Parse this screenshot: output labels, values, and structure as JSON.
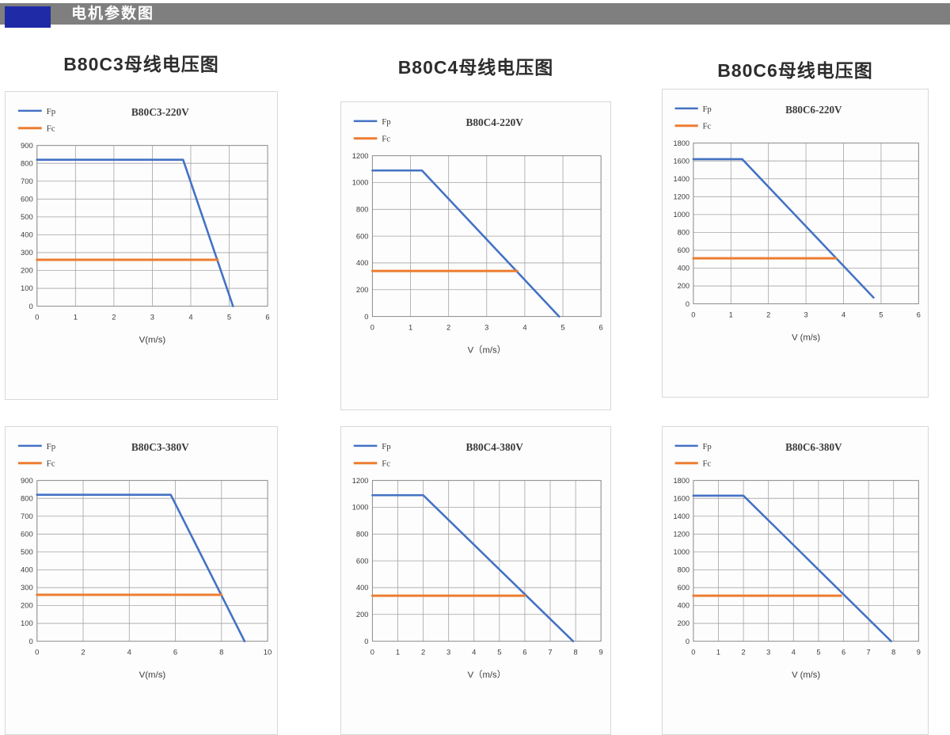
{
  "header": {
    "title": "电机参数图"
  },
  "column_titles": [
    "B80C3母线电压图",
    "B80C4母线电压图",
    "B80C6母线电压图"
  ],
  "colors": {
    "fp_line": "#4472C4",
    "fc_line": "#ED7D31",
    "grid": "#a3a3a3",
    "header_bar": "#7f7f7f",
    "header_accent": "#1f2ba6",
    "header_text": "#ffffff",
    "tick_text": "#3b3b3b"
  },
  "chart_data": [
    {
      "type": "line",
      "title": "B80C3-220V",
      "xlabel": "V(m/s)",
      "xlim": [
        0,
        6
      ],
      "xstep": 1,
      "ylim": [
        0,
        900
      ],
      "ystep": 100,
      "grid": true,
      "legend_position": "top-left",
      "legend": [
        "Fp",
        "Fc"
      ],
      "series": [
        {
          "name": "Fp",
          "color": "#4472C4",
          "points": [
            [
              0,
              820
            ],
            [
              3.8,
              820
            ],
            [
              5.1,
              0
            ]
          ]
        },
        {
          "name": "Fc",
          "color": "#ED7D31",
          "points": [
            [
              0,
              260
            ],
            [
              4.7,
              260
            ]
          ]
        }
      ]
    },
    {
      "type": "line",
      "title": "B80C4-220V",
      "xlabel": "V（m/s）",
      "xlim": [
        0,
        6
      ],
      "xstep": 1,
      "ylim": [
        0,
        1200
      ],
      "ystep": 200,
      "grid": true,
      "legend_position": "top-left",
      "legend": [
        "Fp",
        "Fc"
      ],
      "series": [
        {
          "name": "Fp",
          "color": "#4472C4",
          "points": [
            [
              0,
              1090
            ],
            [
              1.3,
              1090
            ],
            [
              4.9,
              0
            ]
          ]
        },
        {
          "name": "Fc",
          "color": "#ED7D31",
          "points": [
            [
              0,
              340
            ],
            [
              3.8,
              340
            ]
          ]
        }
      ]
    },
    {
      "type": "line",
      "title": "B80C6-220V",
      "xlabel": "V (m/s)",
      "xlim": [
        0,
        6
      ],
      "xstep": 1,
      "ylim": [
        0,
        1800
      ],
      "ystep": 200,
      "grid": true,
      "legend_position": "top-left",
      "legend": [
        "Fp",
        "Fc"
      ],
      "series": [
        {
          "name": "Fp",
          "color": "#4472C4",
          "points": [
            [
              0,
              1620
            ],
            [
              1.3,
              1620
            ],
            [
              4.8,
              70
            ]
          ]
        },
        {
          "name": "Fc",
          "color": "#ED7D31",
          "points": [
            [
              0,
              510
            ],
            [
              3.8,
              510
            ]
          ]
        }
      ]
    },
    {
      "type": "line",
      "title": "B80C3-380V",
      "xlabel": "V(m/s)",
      "xlim": [
        0,
        10
      ],
      "xstep": 2,
      "ylim": [
        0,
        900
      ],
      "ystep": 100,
      "grid": true,
      "legend_position": "top-left",
      "legend": [
        "Fp",
        "Fc"
      ],
      "series": [
        {
          "name": "Fp",
          "color": "#4472C4",
          "points": [
            [
              0,
              820
            ],
            [
              5.8,
              820
            ],
            [
              9,
              0
            ]
          ]
        },
        {
          "name": "Fc",
          "color": "#ED7D31",
          "points": [
            [
              0,
              260
            ],
            [
              8,
              260
            ]
          ]
        }
      ]
    },
    {
      "type": "line",
      "title": "B80C4-380V",
      "xlabel": "V（m/s）",
      "xlim": [
        0,
        9
      ],
      "xstep": 1,
      "ylim": [
        0,
        1200
      ],
      "ystep": 200,
      "grid": true,
      "legend_position": "top-left",
      "legend": [
        "Fp",
        "Fc"
      ],
      "series": [
        {
          "name": "Fp",
          "color": "#4472C4",
          "points": [
            [
              0,
              1090
            ],
            [
              2,
              1090
            ],
            [
              7.9,
              0
            ]
          ]
        },
        {
          "name": "Fc",
          "color": "#ED7D31",
          "points": [
            [
              0,
              340
            ],
            [
              6,
              340
            ]
          ]
        }
      ]
    },
    {
      "type": "line",
      "title": "B80C6-380V",
      "xlabel": "V (m/s)",
      "xlim": [
        0,
        9
      ],
      "xstep": 1,
      "ylim": [
        0,
        1800
      ],
      "ystep": 200,
      "grid": true,
      "legend_position": "top-left",
      "legend": [
        "Fp",
        "Fc"
      ],
      "series": [
        {
          "name": "Fp",
          "color": "#4472C4",
          "points": [
            [
              0,
              1630
            ],
            [
              2,
              1630
            ],
            [
              7.9,
              0
            ]
          ]
        },
        {
          "name": "Fc",
          "color": "#ED7D31",
          "points": [
            [
              0,
              510
            ],
            [
              5.9,
              510
            ]
          ]
        }
      ]
    }
  ]
}
